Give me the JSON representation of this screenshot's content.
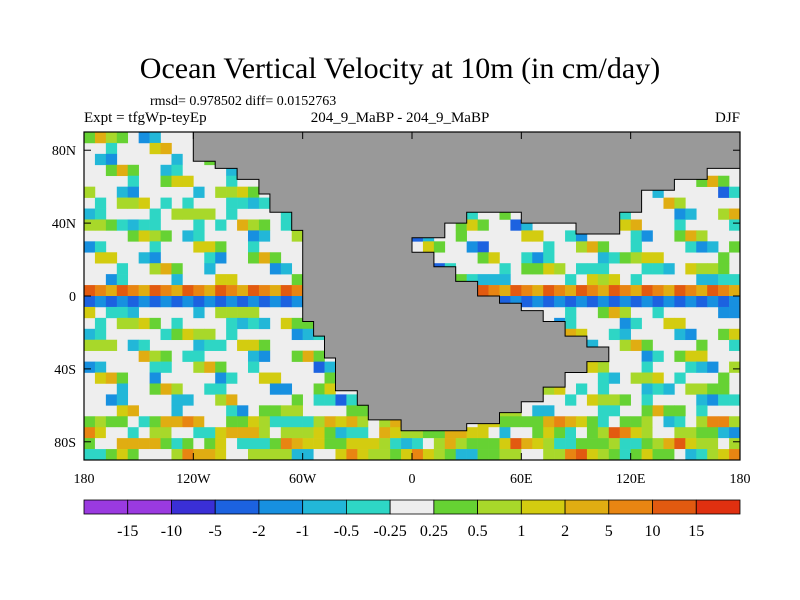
{
  "header": {
    "title": "Ocean Vertical Velocity at 10m (in cm/day)",
    "stats": "rmsd= 0.978502 diff= 0.0152763",
    "expt": "Expt = tfgWp-teyEp",
    "cases": "204_9_MaBP - 204_9_MaBP",
    "season": "DJF"
  },
  "colors": {
    "land": "#999999",
    "neutral": "#eeeeee",
    "levels": [
      "#9a3ae0",
      "#3a2fd6",
      "#1c62e0",
      "#1790e0",
      "#22b7d8",
      "#2ed6c5",
      "#eeeeee",
      "#66d233",
      "#a8d82a",
      "#d3cc10",
      "#e0ad12",
      "#e88512",
      "#e25a10",
      "#e03010"
    ]
  },
  "chart_data": {
    "type": "heatmap",
    "title": "Ocean Vertical Velocity at 10m (in cm/day)",
    "units": "cm/day",
    "xlim": [
      -180,
      180
    ],
    "ylim": [
      -90,
      90
    ],
    "x_ticks": [
      {
        "value": -180,
        "label": "180"
      },
      {
        "value": -120,
        "label": "120W"
      },
      {
        "value": -60,
        "label": "60W"
      },
      {
        "value": 0,
        "label": "0"
      },
      {
        "value": 60,
        "label": "60E"
      },
      {
        "value": 120,
        "label": "120E"
      },
      {
        "value": 180,
        "label": "180"
      }
    ],
    "y_ticks": [
      {
        "value": 80,
        "label": "80N"
      },
      {
        "value": 40,
        "label": "40N"
      },
      {
        "value": 0,
        "label": "0"
      },
      {
        "value": -40,
        "label": "40S"
      },
      {
        "value": -80,
        "label": "80S"
      }
    ],
    "colorbar_levels": [
      "-15",
      "-10",
      "-5",
      "-2",
      "-1",
      "-0.5",
      "-0.25",
      "0.25",
      "0.5",
      "1",
      "2",
      "5",
      "10",
      "15"
    ],
    "land_outline": [
      [
        -120,
        90
      ],
      [
        -120,
        74
      ],
      [
        -108,
        74
      ],
      [
        -108,
        70
      ],
      [
        -96,
        70
      ],
      [
        -96,
        64
      ],
      [
        -84,
        64
      ],
      [
        -84,
        56
      ],
      [
        -78,
        56
      ],
      [
        -78,
        46
      ],
      [
        -66,
        46
      ],
      [
        -66,
        36
      ],
      [
        -60,
        36
      ],
      [
        -60,
        -14
      ],
      [
        -54,
        -14
      ],
      [
        -54,
        -22
      ],
      [
        -48,
        -22
      ],
      [
        -48,
        -34
      ],
      [
        -42,
        -34
      ],
      [
        -42,
        -52
      ],
      [
        -30,
        -52
      ],
      [
        -30,
        -60
      ],
      [
        -24,
        -60
      ],
      [
        -24,
        -68
      ],
      [
        -6,
        -68
      ],
      [
        -6,
        -74
      ],
      [
        30,
        -74
      ],
      [
        30,
        -70
      ],
      [
        48,
        -70
      ],
      [
        48,
        -64
      ],
      [
        60,
        -64
      ],
      [
        60,
        -58
      ],
      [
        72,
        -58
      ],
      [
        72,
        -50
      ],
      [
        84,
        -50
      ],
      [
        84,
        -42
      ],
      [
        96,
        -42
      ],
      [
        96,
        -36
      ],
      [
        108,
        -36
      ],
      [
        108,
        -28
      ],
      [
        96,
        -28
      ],
      [
        96,
        -22
      ],
      [
        84,
        -22
      ],
      [
        84,
        -14
      ],
      [
        72,
        -14
      ],
      [
        72,
        -8
      ],
      [
        60,
        -8
      ],
      [
        60,
        -4
      ],
      [
        48,
        -4
      ],
      [
        48,
        0
      ],
      [
        36,
        0
      ],
      [
        36,
        8
      ],
      [
        24,
        8
      ],
      [
        24,
        16
      ],
      [
        12,
        16
      ],
      [
        12,
        24
      ],
      [
        0,
        24
      ],
      [
        0,
        32
      ],
      [
        18,
        32
      ],
      [
        18,
        40
      ],
      [
        30,
        40
      ],
      [
        30,
        46
      ],
      [
        60,
        46
      ],
      [
        60,
        40
      ],
      [
        90,
        40
      ],
      [
        90,
        34
      ],
      [
        114,
        34
      ],
      [
        114,
        46
      ],
      [
        126,
        46
      ],
      [
        126,
        58
      ],
      [
        144,
        58
      ],
      [
        144,
        64
      ],
      [
        162,
        64
      ],
      [
        162,
        70
      ],
      [
        180,
        70
      ],
      [
        180,
        90
      ]
    ]
  },
  "colorbar": {
    "labels": [
      "-15",
      "-10",
      "-5",
      "-2",
      "-1",
      "-0.5",
      "-0.25",
      "0.25",
      "0.5",
      "1",
      "2",
      "5",
      "10",
      "15"
    ]
  }
}
